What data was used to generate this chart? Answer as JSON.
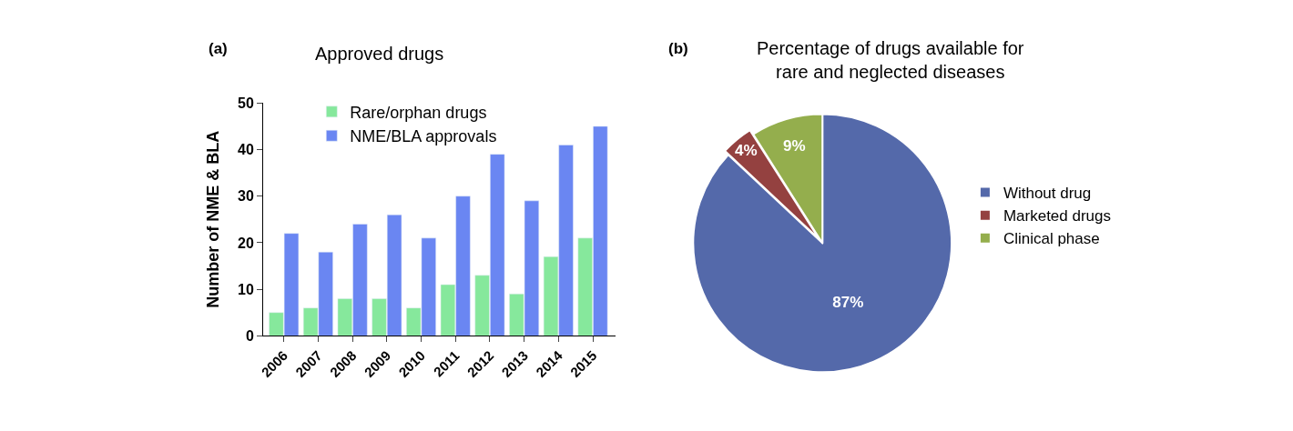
{
  "chart_data": [
    {
      "type": "bar",
      "title": "Approved drugs",
      "ylabel": "Number of NME & BLA",
      "annotations": [
        "(a)"
      ],
      "categories": [
        "2006",
        "2007",
        "2008",
        "2009",
        "2010",
        "2011",
        "2012",
        "2013",
        "2014",
        "2015"
      ],
      "series": [
        {
          "name": "Rare/orphan drugs",
          "color": "#86e89c",
          "values": [
            5,
            6,
            8,
            8,
            6,
            11,
            13,
            9,
            17,
            21
          ]
        },
        {
          "name": "NME/BLA approvals",
          "color": "#6a86f2",
          "values": [
            22,
            18,
            24,
            26,
            21,
            30,
            39,
            29,
            41,
            45
          ]
        }
      ],
      "ylim": [
        0,
        50
      ],
      "yticks": [
        0,
        10,
        20,
        30,
        40,
        50
      ],
      "grid": false,
      "legend": "top left"
    },
    {
      "type": "pie",
      "title": "Percentage of drugs available for\nrare and neglected diseases",
      "annotations": [
        "(b)"
      ],
      "categories": [
        "Without drug",
        "Marketed drugs",
        "Clinical phase"
      ],
      "values": [
        87,
        4,
        9
      ],
      "colors": [
        "#5469aa",
        "#944140",
        "#94ae4d"
      ],
      "value_labels": [
        "87%",
        "4%",
        "9%"
      ],
      "legend": "right"
    }
  ]
}
